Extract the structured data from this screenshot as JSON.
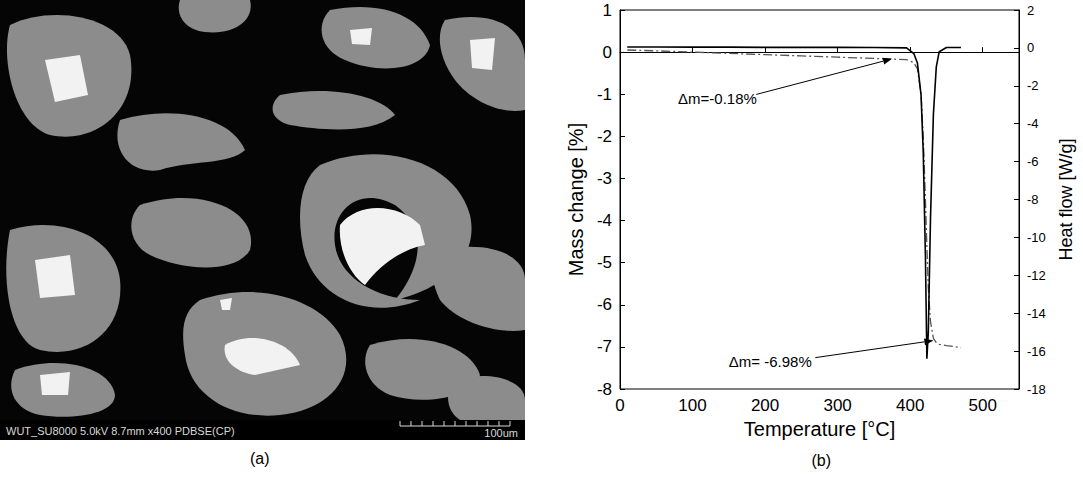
{
  "image_panel": {
    "label": "(a)",
    "info_bar": "WUT_SU8000 5.0kV 8.7mm x400 PDBSE(CP)",
    "scale_bar": "100um"
  },
  "chart_data": {
    "type": "line",
    "label": "(b)",
    "x_label": "Temperature [°C]",
    "y_label": "Mass change [%]",
    "y2_label": "Heat flow [W/g]",
    "x": [
      10,
      50,
      100,
      150,
      200,
      250,
      300,
      350,
      395,
      405,
      410,
      415,
      418,
      421,
      423,
      425,
      428,
      432,
      436,
      440,
      450,
      460,
      470
    ],
    "series": [
      {
        "color": "#555555",
        "line_style": "dashdot",
        "values": [
          0.05,
          0.03,
          0.0,
          -0.03,
          -0.06,
          -0.09,
          -0.12,
          -0.15,
          -0.18,
          -0.25,
          -0.4,
          -1.0,
          -2.0,
          -3.5,
          -4.6,
          -5.6,
          -6.4,
          -6.8,
          -6.9,
          -6.94,
          -6.97,
          -6.99,
          -7.02
        ]
      },
      {
        "color": "#000000",
        "line_style": "solid",
        "axis": "y2",
        "values": [
          0.05,
          0.05,
          0.04,
          0.04,
          0.03,
          0.03,
          0.03,
          0.02,
          0.0,
          -0.3,
          -0.8,
          -2.5,
          -5.5,
          -11.0,
          -16.4,
          -15.0,
          -9.0,
          -3.5,
          -1.0,
          -0.2,
          0.02,
          0.02,
          0.02
        ]
      }
    ],
    "xlim": [
      0,
      550
    ],
    "xticks": [
      0,
      100,
      200,
      300,
      400,
      500
    ],
    "ylim": [
      -8,
      1
    ],
    "yticks": [
      -8,
      -7,
      -6,
      -5,
      -4,
      -3,
      -2,
      -1,
      0,
      1
    ],
    "y2lim": [
      -18,
      2
    ],
    "y2ticks": [
      -18,
      -16,
      -14,
      -12,
      -10,
      -8,
      -6,
      -4,
      -2,
      0,
      2
    ],
    "grid": false,
    "annotations": [
      {
        "text": "Δm=-0.18%",
        "text_at": [
          80,
          -1.1
        ],
        "arrow_to": [
          375,
          -0.16
        ]
      },
      {
        "text": "Δm= -6.98%",
        "text_at": [
          150,
          -7.35
        ],
        "arrow_to": [
          432,
          -6.85
        ]
      }
    ]
  }
}
